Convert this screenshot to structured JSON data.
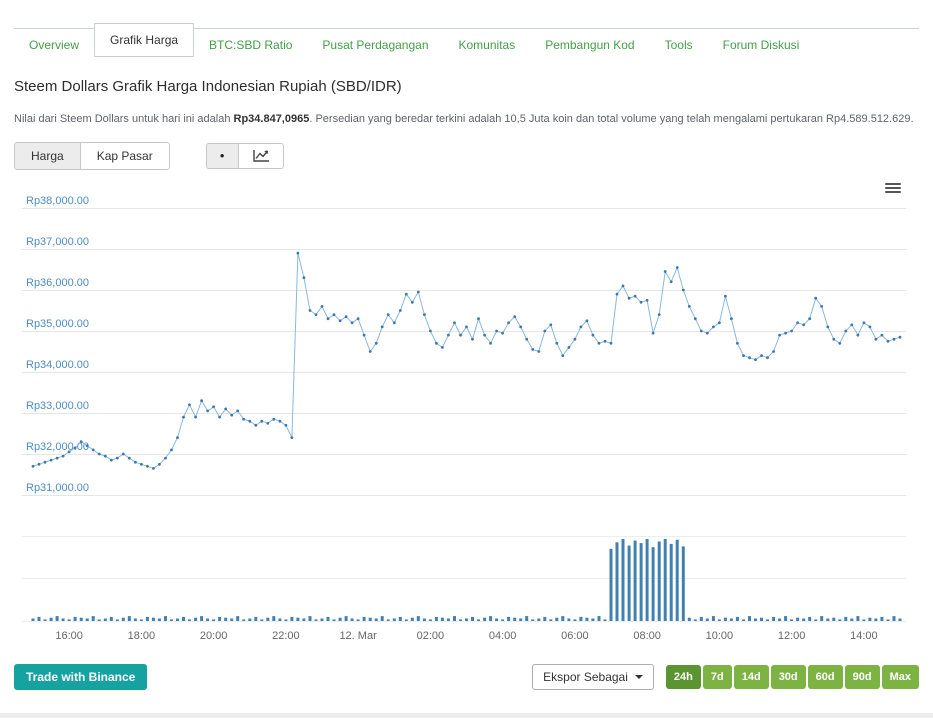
{
  "tabs": {
    "items": [
      {
        "label": "Overview",
        "active": false
      },
      {
        "label": "Grafik Harga",
        "active": true
      },
      {
        "label": "BTC:SBD Ratio",
        "active": false
      },
      {
        "label": "Pusat Perdagangan",
        "active": false
      },
      {
        "label": "Komunitas",
        "active": false
      },
      {
        "label": "Pembangun Kod",
        "active": false
      },
      {
        "label": "Tools",
        "active": false
      },
      {
        "label": "Forum Diskusi",
        "active": false
      }
    ]
  },
  "page": {
    "title": "Steem Dollars Grafik Harga Indonesian Rupiah (SBD/IDR)",
    "description_part1": "Nilai dari Steem Dollars untuk hari ini adalah ",
    "description_bold": "Rp34.847,0965",
    "description_part2": ". Persedian yang beredar terkini adalah 10,5 Juta koin dan total volume yang telah mengalami pertukaran Rp4.589.512.629."
  },
  "controls": {
    "harga_label": "Harga",
    "kap_pasar_label": "Kap Pasar",
    "active_metric": "Harga",
    "chart_mode_options": [
      "dot",
      "line"
    ],
    "active_chart_mode": "dot"
  },
  "footer": {
    "trade_button": "Trade with Binance",
    "export_button": "Ekspor Sebagai",
    "ranges": [
      "24h",
      "7d",
      "14d",
      "30d",
      "60d",
      "90d",
      "Max"
    ],
    "active_range": "24h"
  },
  "colors": {
    "accent_green": "#43a047",
    "range_green": "#7cb342",
    "range_green_active": "#5d9432",
    "binance_teal": "#17a2a2",
    "axis_label_blue": "#4e8cc2",
    "x_label_gray": "#666666",
    "line_blue": "#8ab8e0",
    "marker_blue": "#3c78ad",
    "volume_blue": "#4181b2",
    "grid_gray": "#e6e6e6"
  },
  "chart_data": {
    "type": "line",
    "title": "",
    "xlabel": "",
    "ylabel": "",
    "grid": true,
    "points_interval_minutes": 10,
    "ylim": [
      31000,
      38000
    ],
    "y_ticks": [
      {
        "value": 38000,
        "label": "Rp38,000.00"
      },
      {
        "value": 37000,
        "label": "Rp37,000.00"
      },
      {
        "value": 36000,
        "label": "Rp36,000.00"
      },
      {
        "value": 35000,
        "label": "Rp35,000.00"
      },
      {
        "value": 34000,
        "label": "Rp34,000.00"
      },
      {
        "value": 33000,
        "label": "Rp33,000.00"
      },
      {
        "value": 32000,
        "label": "Rp32,000.00"
      },
      {
        "value": 31000,
        "label": "Rp31,000.00"
      }
    ],
    "x_ticks": [
      {
        "index": 6,
        "label": "16:00"
      },
      {
        "index": 18,
        "label": "18:00"
      },
      {
        "index": 30,
        "label": "20:00"
      },
      {
        "index": 42,
        "label": "22:00"
      },
      {
        "index": 54,
        "label": "12. Mar"
      },
      {
        "index": 66,
        "label": "02:00"
      },
      {
        "index": 78,
        "label": "04:00"
      },
      {
        "index": 90,
        "label": "06:00"
      },
      {
        "index": 102,
        "label": "08:00"
      },
      {
        "index": 114,
        "label": "10:00"
      },
      {
        "index": 126,
        "label": "12:00"
      },
      {
        "index": 138,
        "label": "14:00"
      }
    ],
    "series": [
      {
        "name": "harga_idr",
        "type": "line",
        "values": [
          31700,
          31750,
          31800,
          31850,
          31900,
          31950,
          32050,
          32150,
          32300,
          32200,
          32100,
          32000,
          31950,
          31850,
          31900,
          32000,
          31900,
          31800,
          31750,
          31700,
          31650,
          31750,
          31900,
          32100,
          32400,
          32900,
          33200,
          32900,
          33300,
          33050,
          33150,
          32900,
          33100,
          32950,
          33050,
          32850,
          32800,
          32700,
          32800,
          32750,
          32850,
          32800,
          32700,
          32400,
          36900,
          36300,
          35500,
          35400,
          35600,
          35300,
          35400,
          35250,
          35350,
          35200,
          35300,
          34900,
          34500,
          34700,
          35100,
          35400,
          35200,
          35500,
          35900,
          35700,
          35950,
          35400,
          35000,
          34700,
          34600,
          34900,
          35200,
          34900,
          35100,
          34800,
          35300,
          34900,
          34700,
          35000,
          34950,
          35200,
          35350,
          35100,
          34800,
          34550,
          34500,
          35000,
          35150,
          34700,
          34400,
          34600,
          34800,
          35100,
          35250,
          34900,
          34700,
          34750,
          34700,
          35900,
          36100,
          35800,
          35850,
          35700,
          35750,
          34950,
          35400,
          36450,
          36200,
          36550,
          36000,
          35600,
          35300,
          35000,
          34950,
          35100,
          35200,
          35850,
          35300,
          34700,
          34400,
          34350,
          34300,
          34400,
          34350,
          34500,
          34900,
          34950,
          35000,
          35200,
          35150,
          35300,
          35800,
          35600,
          35100,
          34800,
          34700,
          35000,
          35150,
          34900,
          35200,
          35100,
          34800,
          34900,
          34750,
          34800,
          34850
        ]
      },
      {
        "name": "volume_relative",
        "type": "bar",
        "values": [
          3,
          5,
          2,
          4,
          6,
          3,
          2,
          5,
          4,
          3,
          6,
          2,
          3,
          5,
          2,
          4,
          6,
          3,
          2,
          5,
          4,
          3,
          6,
          2,
          3,
          5,
          2,
          4,
          6,
          3,
          2,
          5,
          4,
          3,
          6,
          2,
          3,
          5,
          2,
          4,
          6,
          3,
          2,
          5,
          4,
          3,
          6,
          2,
          3,
          5,
          2,
          4,
          6,
          3,
          2,
          5,
          4,
          3,
          6,
          2,
          3,
          5,
          2,
          4,
          6,
          3,
          2,
          5,
          4,
          3,
          6,
          2,
          3,
          5,
          2,
          4,
          6,
          3,
          2,
          5,
          4,
          3,
          6,
          2,
          3,
          5,
          2,
          4,
          6,
          3,
          2,
          5,
          4,
          3,
          6,
          2,
          88,
          96,
          100,
          92,
          98,
          95,
          100,
          90,
          97,
          100,
          94,
          99,
          91,
          4,
          2,
          5,
          3,
          6,
          2,
          4,
          3,
          5,
          2,
          6,
          3,
          4,
          2,
          5,
          3,
          6,
          2,
          4,
          3,
          5,
          2,
          6,
          3,
          4,
          2,
          5,
          3,
          6,
          2,
          4,
          3,
          5,
          2,
          6,
          3
        ]
      }
    ]
  }
}
